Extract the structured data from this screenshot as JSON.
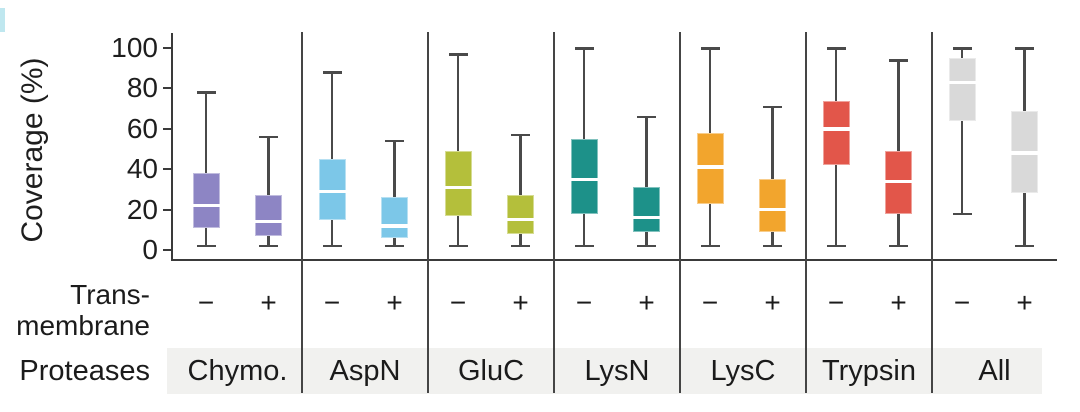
{
  "figure": {
    "corner_mark_color": "#bfe7ef",
    "text_color": "#1b1b1b",
    "axis_color": "#3a3a3a",
    "whisker_color": "#4a4a4a",
    "band_color": "#f1f1ef",
    "median_color": "#ffffff"
  },
  "rows": {
    "transmembrane_line1": "Trans-",
    "transmembrane_line2": "membrane",
    "proteases_label": "Proteases"
  },
  "chart_data": {
    "type": "boxplot",
    "title": "",
    "ylabel": "Coverage (%)",
    "xlabel": "",
    "ylim": [
      0,
      100
    ],
    "yticks": [
      0,
      20,
      40,
      60,
      80,
      100
    ],
    "grid": false,
    "legend": null,
    "condition_labels": [
      "−",
      "+"
    ],
    "categories": [
      "Chymo.",
      "AspN",
      "GluC",
      "LysN",
      "LysC",
      "Trypsin",
      "All"
    ],
    "groups": [
      {
        "protease": "Chymo.",
        "color": "#8d85c4",
        "boxes": [
          {
            "transmembrane": "−",
            "whisker_low": 2,
            "q1": 11,
            "median": 22,
            "q3": 38,
            "whisker_high": 78
          },
          {
            "transmembrane": "+",
            "whisker_low": 2,
            "q1": 7,
            "median": 14,
            "q3": 27,
            "whisker_high": 56
          }
        ]
      },
      {
        "protease": "AspN",
        "color": "#7cc7e8",
        "boxes": [
          {
            "transmembrane": "−",
            "whisker_low": 2,
            "q1": 15,
            "median": 29,
            "q3": 45,
            "whisker_high": 88
          },
          {
            "transmembrane": "+",
            "whisker_low": 2,
            "q1": 6,
            "median": 12,
            "q3": 26,
            "whisker_high": 54
          }
        ]
      },
      {
        "protease": "GluC",
        "color": "#b4bf3b",
        "boxes": [
          {
            "transmembrane": "−",
            "whisker_low": 2,
            "q1": 17,
            "median": 31,
            "q3": 49,
            "whisker_high": 97
          },
          {
            "transmembrane": "+",
            "whisker_low": 2,
            "q1": 8,
            "median": 15,
            "q3": 27,
            "whisker_high": 57
          }
        ]
      },
      {
        "protease": "LysN",
        "color": "#1d9189",
        "boxes": [
          {
            "transmembrane": "−",
            "whisker_low": 2,
            "q1": 18,
            "median": 35,
            "q3": 55,
            "whisker_high": 100
          },
          {
            "transmembrane": "+",
            "whisker_low": 2,
            "q1": 9,
            "median": 16,
            "q3": 31,
            "whisker_high": 66
          }
        ]
      },
      {
        "protease": "LysC",
        "color": "#f2a52d",
        "boxes": [
          {
            "transmembrane": "−",
            "whisker_low": 2,
            "q1": 23,
            "median": 41,
            "q3": 58,
            "whisker_high": 100
          },
          {
            "transmembrane": "+",
            "whisker_low": 2,
            "q1": 9,
            "median": 20,
            "q3": 35,
            "whisker_high": 71
          }
        ]
      },
      {
        "protease": "Trypsin",
        "color": "#e2564a",
        "boxes": [
          {
            "transmembrane": "−",
            "whisker_low": 2,
            "q1": 42,
            "median": 60,
            "q3": 74,
            "whisker_high": 100
          },
          {
            "transmembrane": "+",
            "whisker_low": 2,
            "q1": 18,
            "median": 34,
            "q3": 49,
            "whisker_high": 94
          }
        ]
      },
      {
        "protease": "All",
        "color": "#d9d9d9",
        "boxes": [
          {
            "transmembrane": "−",
            "whisker_low": 18,
            "q1": 64,
            "median": 83,
            "q3": 95,
            "whisker_high": 100
          },
          {
            "transmembrane": "+",
            "whisker_low": 2,
            "q1": 28,
            "median": 48,
            "q3": 69,
            "whisker_high": 100
          }
        ]
      }
    ]
  }
}
